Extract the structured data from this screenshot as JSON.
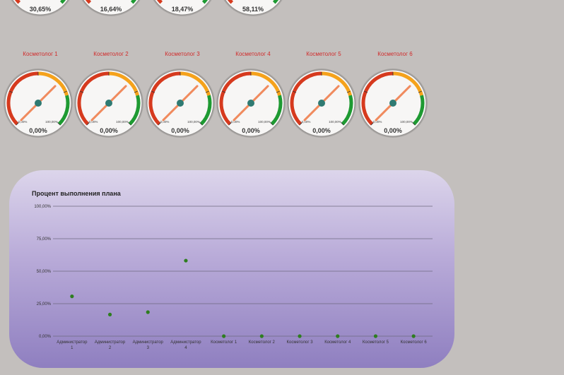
{
  "colors": {
    "background": "#c3bfbd",
    "gauge_red": "#d63a1e",
    "gauge_orange": "#f5a21b",
    "gauge_green": "#1e9a32",
    "needle": "#f08a5d",
    "hub": "#2f7a72",
    "label_red": "#d12b2b",
    "point": "#2e7d1f",
    "grid": "#6e6a80"
  },
  "top_gauges": [
    {
      "value": "30,65%"
    },
    {
      "value": "16,64%"
    },
    {
      "value": "18,47%"
    },
    {
      "value": "58,11%"
    }
  ],
  "gauge_scale": {
    "min": "0,00%",
    "max": "100,00%"
  },
  "gauges": [
    {
      "label": "Косметолог 1",
      "value": "0,00%"
    },
    {
      "label": "Косметолог 2",
      "value": "0,00%"
    },
    {
      "label": "Косметолог 3",
      "value": "0,00%"
    },
    {
      "label": "Косметолог 4",
      "value": "0,00%"
    },
    {
      "label": "Косметолог 5",
      "value": "0,00%"
    },
    {
      "label": "Косметолог 6",
      "value": "0,00%"
    }
  ],
  "chart_data": {
    "type": "scatter",
    "title": "Процент выполнения плана",
    "categories": [
      "Администратор 1",
      "Администратор 2",
      "Администратор 3",
      "Администратор 4",
      "Косметолог 1",
      "Косметолог 2",
      "Косметолог 3",
      "Косметолог 4",
      "Косметолог 5",
      "Косметолог 6"
    ],
    "values": [
      30.65,
      16.64,
      18.47,
      58.11,
      0,
      0,
      0,
      0,
      0,
      0
    ],
    "ylim": [
      0,
      100
    ],
    "yticks": [
      "0,00%",
      "25,00%",
      "50,00%",
      "75,00%",
      "100,00%"
    ],
    "grid": true,
    "xlabel": "",
    "ylabel": ""
  }
}
